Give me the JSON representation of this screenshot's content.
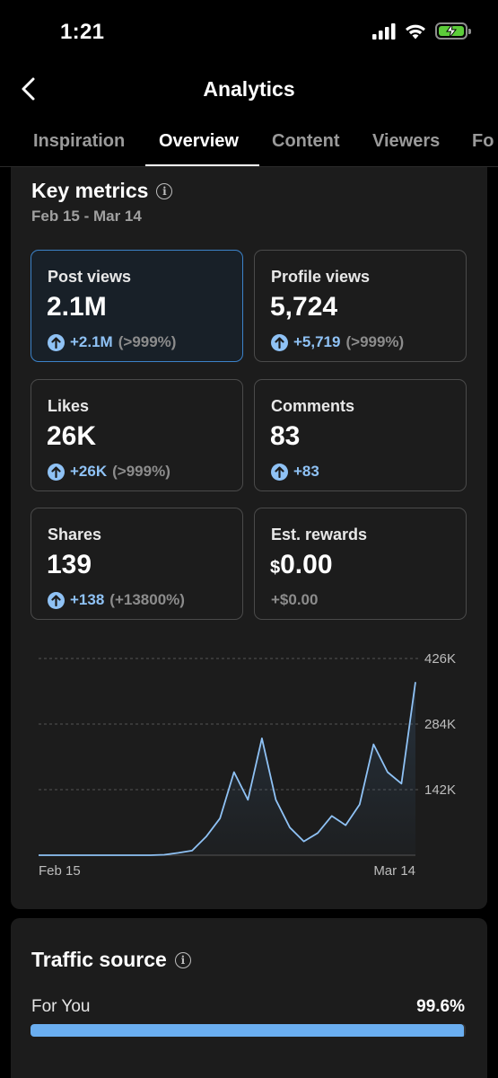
{
  "status_bar": {
    "time": "1:21"
  },
  "header": {
    "title": "Analytics"
  },
  "tabs": [
    {
      "label": "Inspiration",
      "active": false
    },
    {
      "label": "Overview",
      "active": true
    },
    {
      "label": "Content",
      "active": false
    },
    {
      "label": "Viewers",
      "active": false
    },
    {
      "label": "Fo",
      "active": false
    }
  ],
  "key_metrics": {
    "title": "Key metrics",
    "date_range": "Feb 15 - Mar 14",
    "tiles": [
      {
        "label": "Post views",
        "value": "2.1M",
        "change": "+2.1M",
        "pct": "(>999%)",
        "active": true,
        "arrow": true
      },
      {
        "label": "Profile views",
        "value": "5,724",
        "change": "+5,719",
        "pct": "(>999%)",
        "active": false,
        "arrow": true
      },
      {
        "label": "Likes",
        "value": "26K",
        "change": "+26K",
        "pct": "(>999%)",
        "active": false,
        "arrow": true
      },
      {
        "label": "Comments",
        "value": "83",
        "change": "+83",
        "pct": "",
        "active": false,
        "arrow": true
      },
      {
        "label": "Shares",
        "value": "139",
        "change": "+138",
        "pct": "(+13800%)",
        "active": false,
        "arrow": true
      },
      {
        "label": "Est. rewards",
        "currency": "$",
        "value": "0.00",
        "change": "+$0.00",
        "pct": "",
        "active": false,
        "arrow": false
      }
    ]
  },
  "chart_data": {
    "type": "area",
    "x_ticks": [
      "Feb 15",
      "Mar 14"
    ],
    "y_ticks": [
      "426K",
      "284K",
      "142K"
    ],
    "ylim": [
      0,
      426000
    ],
    "grid": true,
    "series": [
      {
        "values": [
          0,
          0,
          0,
          0,
          0,
          0,
          0,
          0,
          0,
          1000,
          5000,
          10000,
          40000,
          80000,
          180000,
          120000,
          253000,
          120000,
          60000,
          30000,
          48000,
          85000,
          65000,
          110000,
          240000,
          180000,
          155000,
          375000
        ]
      }
    ],
    "color": "#8fc2f5"
  },
  "traffic_source": {
    "title": "Traffic source",
    "rows": [
      {
        "label": "For You",
        "pct": "99.6%",
        "fraction": 0.996
      }
    ]
  }
}
